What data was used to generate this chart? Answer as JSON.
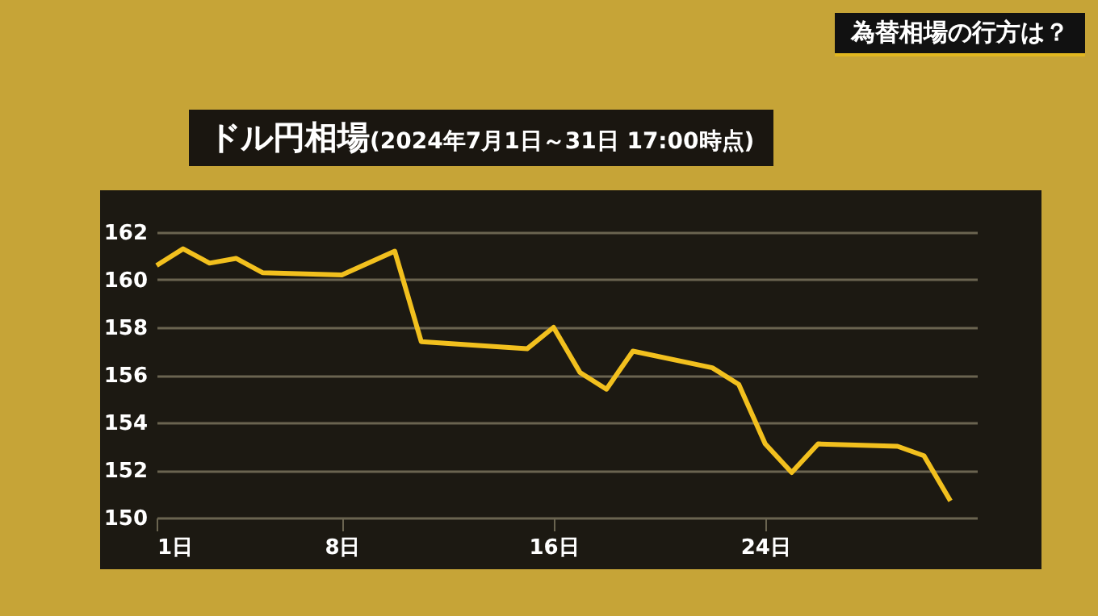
{
  "chart_data": {
    "type": "line",
    "title": "ドル円相場",
    "subtitle": "(2024年7月1日～31日  17:00時点)",
    "annotations": [
      "為替相場の行方は？"
    ],
    "x": [
      1,
      2,
      3,
      4,
      5,
      8,
      10,
      11,
      15,
      16,
      17,
      18,
      19,
      22,
      23,
      24,
      25,
      26,
      29,
      30,
      31
    ],
    "series": [
      {
        "color": "#f2c01e",
        "values": [
          160.6,
          161.3,
          160.7,
          160.9,
          160.3,
          160.2,
          161.2,
          157.4,
          157.1,
          158.0,
          156.1,
          155.4,
          157.0,
          156.3,
          155.6,
          153.1,
          151.9,
          153.1,
          153.0,
          152.6,
          150.7
        ]
      }
    ],
    "xlim": [
      1,
      32
    ],
    "xticks": [
      {
        "value": 1,
        "label": "1日"
      },
      {
        "value": 8,
        "label": "8日"
      },
      {
        "value": 16,
        "label": "16日"
      },
      {
        "value": 24,
        "label": "24日"
      }
    ],
    "ylim": [
      150,
      162
    ],
    "yticks": [
      150,
      152,
      154,
      156,
      158,
      160,
      162
    ],
    "grid": "y",
    "marker": "none",
    "line_style": "solid"
  }
}
